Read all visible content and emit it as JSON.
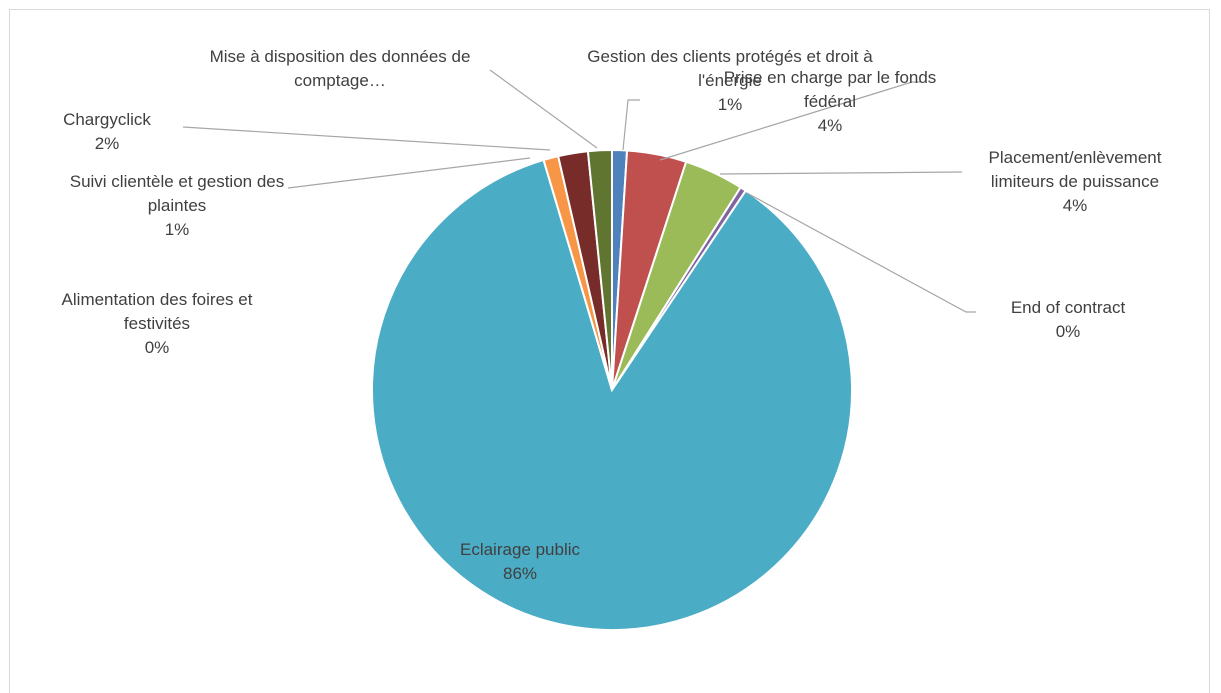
{
  "chart_data": {
    "type": "pie",
    "categories": [
      "Gestion des clients protégés et droit à l'énergie",
      "Prise en charge par le fonds fédéral",
      "Placement/enlèvement limiteurs de puissance",
      "End of contract",
      "Eclairage public",
      "Alimentation des foires et festivités",
      "Suivi clientèle et gestion des plaintes",
      "Chargyclick",
      "Mise à disposition des données de comptage…"
    ],
    "values": [
      1,
      4,
      4,
      0.4,
      86,
      0,
      1,
      2,
      1.6
    ],
    "value_labels": [
      "1%",
      "4%",
      "4%",
      "0%",
      "86%",
      "0%",
      "1%",
      "2%",
      null
    ],
    "colors": [
      "#4f81bd",
      "#c0504d",
      "#9bbb59",
      "#8064a2",
      "#4bacc6",
      "#2c4d75",
      "#f79646",
      "#772c2a",
      "#5f7530"
    ]
  }
}
